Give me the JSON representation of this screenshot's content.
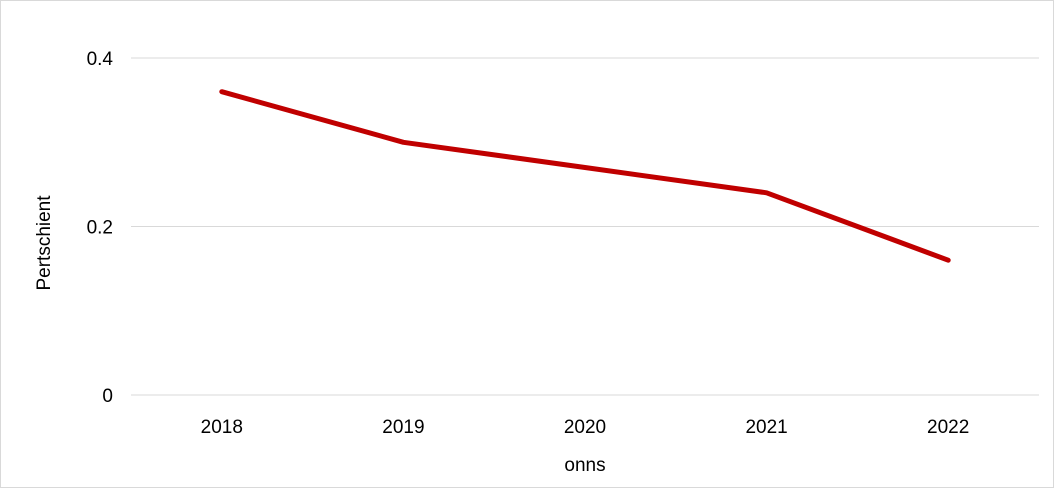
{
  "chart_data": {
    "type": "line",
    "title": "",
    "xlabel": "onns",
    "ylabel": "Pertschient",
    "categories": [
      "2018",
      "2019",
      "2020",
      "2021",
      "2022"
    ],
    "series": [
      {
        "values": [
          0.36,
          0.3,
          0.27,
          0.24,
          0.16
        ],
        "color": "#c00000"
      }
    ],
    "ylim": [
      0,
      0.4
    ],
    "yticks": [
      "0",
      "0.2",
      "0.4"
    ],
    "grid": true,
    "legend": "none"
  }
}
